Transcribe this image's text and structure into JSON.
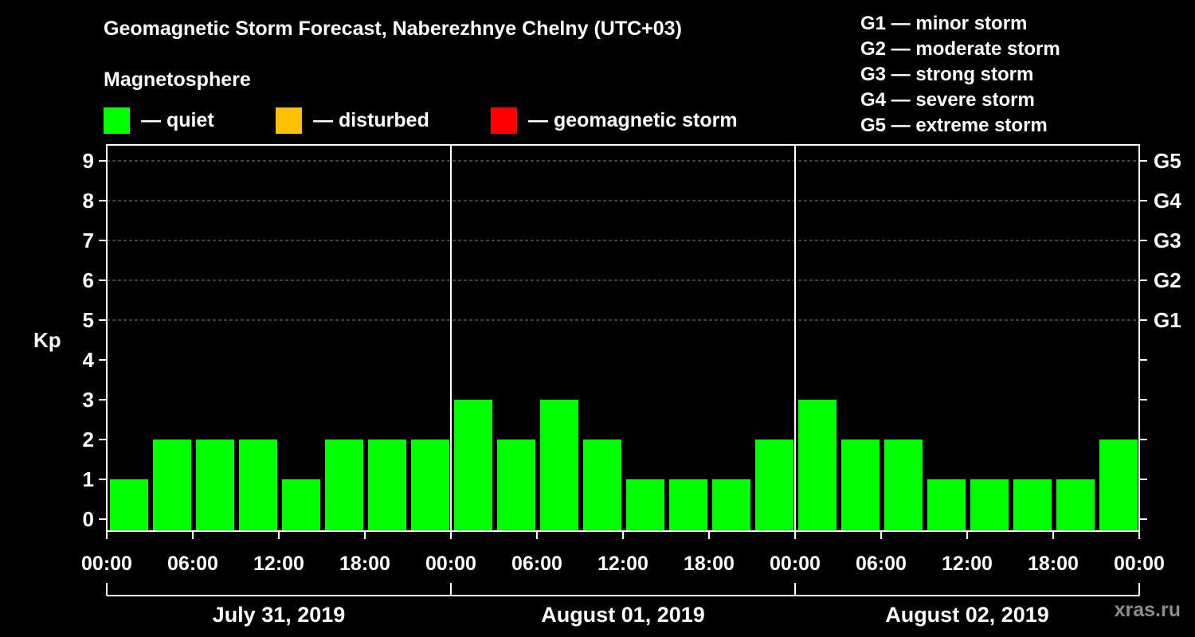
{
  "colors": {
    "quiet": "#00ff00",
    "disturbed": "#ffc000",
    "storm": "#ff0000",
    "background": "#000000",
    "foreground": "#ffffff",
    "grid": "#808080",
    "watermark": "#8c8c8c"
  },
  "legend": {
    "magnetosphere_label": "Magnetosphere",
    "quiet_label": "— quiet",
    "disturbed_label": "— disturbed",
    "storm_label": "— geomagnetic storm"
  },
  "storm_scale": [
    "G1 — minor storm",
    "G2 — moderate storm",
    "G3 — strong storm",
    "G4 — severe storm",
    "G5 — extreme storm"
  ],
  "watermark": "xras.ru",
  "chart_data": {
    "type": "bar",
    "title": "Geomagnetic Storm Forecast, Naberezhnye Chelny (UTC+03)",
    "ylabel": "Kp",
    "xlabel": "",
    "ylim": [
      0,
      9
    ],
    "yticks": [
      "0",
      "1",
      "2",
      "3",
      "4",
      "5",
      "6",
      "7",
      "8",
      "9"
    ],
    "right_axis_labels": [
      {
        "kp": 5,
        "label": "G1"
      },
      {
        "kp": 6,
        "label": "G2"
      },
      {
        "kp": 7,
        "label": "G3"
      },
      {
        "kp": 8,
        "label": "G4"
      },
      {
        "kp": 9,
        "label": "G5"
      }
    ],
    "grid": "horizontal dashed at Kp 5-9",
    "xtick_labels": [
      "00:00",
      "06:00",
      "12:00",
      "18:00",
      "00:00",
      "06:00",
      "12:00",
      "18:00",
      "00:00",
      "06:00",
      "12:00",
      "18:00",
      "00:00"
    ],
    "days": [
      "July 31, 2019",
      "August 01, 2019",
      "August 02, 2019"
    ],
    "interval_hours": 3,
    "series": [
      {
        "name": "Kp",
        "values": [
          1,
          2,
          2,
          2,
          1,
          2,
          2,
          2,
          3,
          2,
          3,
          2,
          1,
          1,
          1,
          2,
          3,
          2,
          2,
          1,
          1,
          1,
          1,
          2
        ]
      }
    ]
  }
}
